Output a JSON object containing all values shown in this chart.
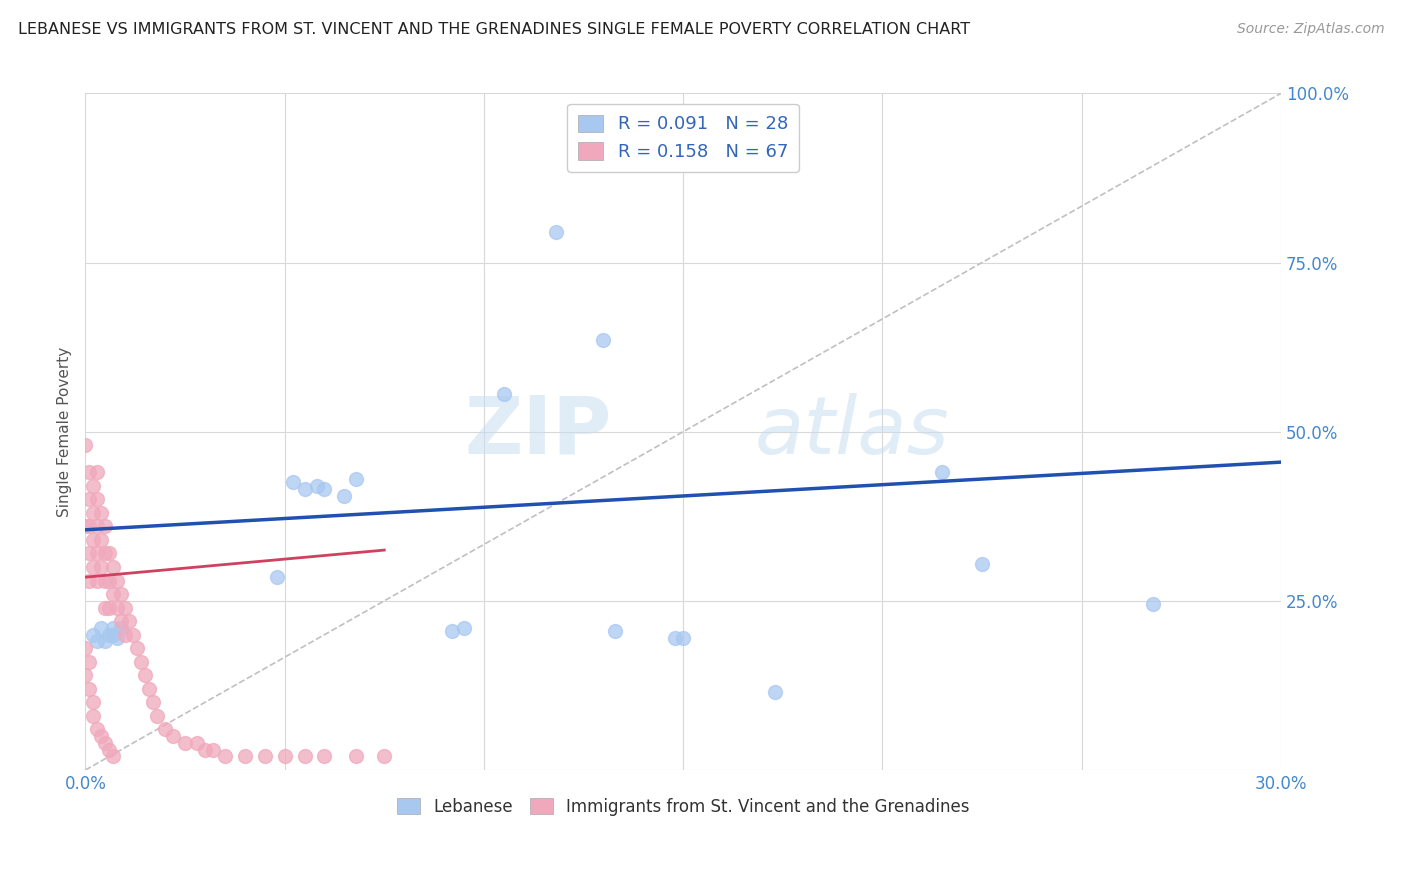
{
  "title": "LEBANESE VS IMMIGRANTS FROM ST. VINCENT AND THE GRENADINES SINGLE FEMALE POVERTY CORRELATION CHART",
  "source": "Source: ZipAtlas.com",
  "xlabel": "",
  "ylabel": "Single Female Poverty",
  "xlim": [
    0.0,
    0.3
  ],
  "ylim": [
    0.0,
    1.0
  ],
  "xticks": [
    0.0,
    0.05,
    0.1,
    0.15,
    0.2,
    0.25,
    0.3
  ],
  "xtick_labels": [
    "0.0%",
    "",
    "",
    "",
    "",
    "",
    "30.0%"
  ],
  "yticks": [
    0.0,
    0.25,
    0.5,
    0.75,
    1.0
  ],
  "ytick_labels_left": [
    "",
    "",
    "",
    "",
    ""
  ],
  "ytick_labels_right": [
    "",
    "25.0%",
    "50.0%",
    "75.0%",
    "100.0%"
  ],
  "legend_blue_label": "Lebanese",
  "legend_pink_label": "Immigrants from St. Vincent and the Grenadines",
  "R_blue": 0.091,
  "N_blue": 28,
  "R_pink": 0.158,
  "N_pink": 67,
  "blue_color": "#a8c8f0",
  "pink_color": "#f0a8bc",
  "trendline_blue_color": "#2050b0",
  "trendline_pink_color": "#d04060",
  "diag_color": "#c0c0c0",
  "blue_x": [
    0.002,
    0.003,
    0.004,
    0.005,
    0.006,
    0.007,
    0.007,
    0.008,
    0.009,
    0.048,
    0.052,
    0.055,
    0.058,
    0.06,
    0.065,
    0.068,
    0.092,
    0.095,
    0.105,
    0.118,
    0.13,
    0.148,
    0.15,
    0.173,
    0.215,
    0.225,
    0.268,
    0.133
  ],
  "blue_y": [
    0.2,
    0.19,
    0.21,
    0.19,
    0.2,
    0.21,
    0.2,
    0.195,
    0.21,
    0.285,
    0.425,
    0.415,
    0.42,
    0.415,
    0.405,
    0.43,
    0.205,
    0.21,
    0.555,
    0.795,
    0.635,
    0.195,
    0.195,
    0.115,
    0.44,
    0.305,
    0.245,
    0.205
  ],
  "pink_x": [
    0.0,
    0.0,
    0.001,
    0.001,
    0.001,
    0.001,
    0.001,
    0.002,
    0.002,
    0.002,
    0.002,
    0.003,
    0.003,
    0.003,
    0.003,
    0.003,
    0.004,
    0.004,
    0.004,
    0.005,
    0.005,
    0.005,
    0.005,
    0.006,
    0.006,
    0.006,
    0.007,
    0.007,
    0.008,
    0.008,
    0.009,
    0.009,
    0.01,
    0.01,
    0.011,
    0.012,
    0.013,
    0.014,
    0.015,
    0.016,
    0.017,
    0.018,
    0.02,
    0.022,
    0.025,
    0.028,
    0.03,
    0.032,
    0.035,
    0.04,
    0.045,
    0.05,
    0.055,
    0.06,
    0.068,
    0.075,
    0.0,
    0.0,
    0.001,
    0.001,
    0.002,
    0.002,
    0.003,
    0.004,
    0.005,
    0.006,
    0.007
  ],
  "pink_y": [
    0.48,
    0.36,
    0.44,
    0.4,
    0.36,
    0.32,
    0.28,
    0.42,
    0.38,
    0.34,
    0.3,
    0.44,
    0.4,
    0.36,
    0.32,
    0.28,
    0.38,
    0.34,
    0.3,
    0.36,
    0.32,
    0.28,
    0.24,
    0.32,
    0.28,
    0.24,
    0.3,
    0.26,
    0.28,
    0.24,
    0.26,
    0.22,
    0.24,
    0.2,
    0.22,
    0.2,
    0.18,
    0.16,
    0.14,
    0.12,
    0.1,
    0.08,
    0.06,
    0.05,
    0.04,
    0.04,
    0.03,
    0.03,
    0.02,
    0.02,
    0.02,
    0.02,
    0.02,
    0.02,
    0.02,
    0.02,
    0.18,
    0.14,
    0.16,
    0.12,
    0.1,
    0.08,
    0.06,
    0.05,
    0.04,
    0.03,
    0.02
  ],
  "watermark_zip": "ZIP",
  "watermark_atlas": "atlas",
  "background_color": "#ffffff",
  "grid_color": "#d8d8d8"
}
